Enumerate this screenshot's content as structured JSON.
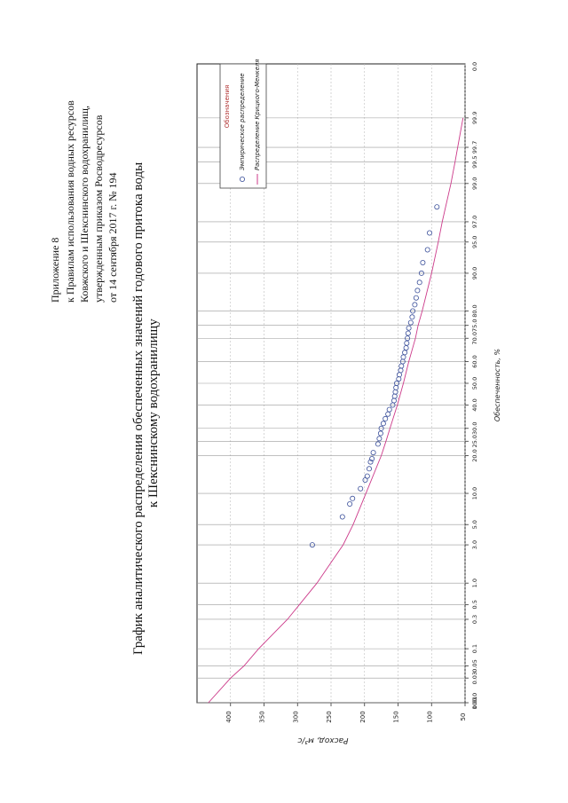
{
  "header": {
    "lines": [
      "Приложение 8",
      "к Правилам использования водных ресурсов",
      "Ковжского и Шекснинского водохранилищ,",
      "утвержденным приказом Росводресурсов",
      "от 14 сентября 2017 г. № 194"
    ]
  },
  "title": {
    "lines": [
      "График аналитического распределения обеспеченных значений годового притока воды",
      "к Шекснинскому водохранилищу"
    ]
  },
  "chart_data": {
    "type": "scatter",
    "orientation": "rotated-90-ccw",
    "x_scale": "probability",
    "xlabel": "Обеспеченность, %",
    "ylabel": "Расход, м³/с",
    "xlim": [
      0.01,
      99.99
    ],
    "ylim": [
      50,
      450
    ],
    "x_ticks": [
      0.01,
      0.03,
      0.05,
      0.1,
      0.3,
      0.5,
      1,
      3,
      5,
      10,
      20,
      25,
      30,
      40,
      50,
      60,
      70,
      75,
      80,
      90,
      95,
      97,
      99,
      99.5,
      99.7,
      99.9
    ],
    "x_tick_labels": [
      "0.01",
      "0.03",
      "0.05",
      "0.1",
      "0.3",
      "0.5",
      "1.0",
      "3.0",
      "5.0",
      "10.0",
      "20.0",
      "25.0",
      "30.0",
      "40.0",
      "50.0",
      "60.0",
      "70.0",
      "75.0",
      "80.0",
      "90.0",
      "95.0",
      "97.0",
      "99.0",
      "99.5",
      "99.7",
      "99.9"
    ],
    "x_edge_labels": [
      "100.0",
      "0.0"
    ],
    "y_ticks": [
      50,
      100,
      150,
      200,
      250,
      300,
      350,
      400
    ],
    "y_tick_labels": [
      "50",
      "100",
      "150",
      "200",
      "250",
      "300",
      "350",
      "400"
    ],
    "grid": true,
    "legend": {
      "title": "Обозначения",
      "placement": "top-right",
      "entries": [
        "Эмпирическое распределение",
        "Распределение Крицкого-Менкеля"
      ]
    },
    "series": [
      {
        "name": "Эмпирическое распределение",
        "kind": "points",
        "color": "#3a4f9a",
        "points": [
          [
            3.0,
            278
          ],
          [
            6.0,
            233
          ],
          [
            8.0,
            222
          ],
          [
            9.0,
            218
          ],
          [
            11.0,
            206
          ],
          [
            13.0,
            199
          ],
          [
            14.0,
            196
          ],
          [
            16.0,
            193
          ],
          [
            18.0,
            191
          ],
          [
            19.0,
            189
          ],
          [
            21.0,
            187
          ],
          [
            24.0,
            180
          ],
          [
            26.0,
            178
          ],
          [
            28.0,
            176
          ],
          [
            30.0,
            175
          ],
          [
            32.0,
            172
          ],
          [
            34.0,
            169
          ],
          [
            36.0,
            165
          ],
          [
            38.0,
            163
          ],
          [
            40.0,
            158
          ],
          [
            42.0,
            156
          ],
          [
            44.0,
            155
          ],
          [
            46.0,
            154
          ],
          [
            48.0,
            153
          ],
          [
            50.0,
            152
          ],
          [
            52.0,
            149
          ],
          [
            54.0,
            148
          ],
          [
            56.0,
            146
          ],
          [
            58.0,
            145
          ],
          [
            60.0,
            143
          ],
          [
            62.0,
            142
          ],
          [
            64.0,
            140
          ],
          [
            66.0,
            138
          ],
          [
            68.0,
            137
          ],
          [
            70.0,
            136
          ],
          [
            72.0,
            135
          ],
          [
            74.0,
            134
          ],
          [
            76.0,
            131
          ],
          [
            78.0,
            129
          ],
          [
            80.0,
            128
          ],
          [
            82.0,
            125
          ],
          [
            84.0,
            123
          ],
          [
            86.0,
            121
          ],
          [
            88.0,
            118
          ],
          [
            90.0,
            115
          ],
          [
            92.0,
            113
          ],
          [
            94.0,
            106
          ],
          [
            96.0,
            103
          ],
          [
            98.0,
            92
          ]
        ]
      },
      {
        "name": "Распределение Крицкого-Менкеля",
        "kind": "line",
        "color": "#cc3a8a",
        "points": [
          [
            0.01,
            433
          ],
          [
            0.03,
            400
          ],
          [
            0.05,
            380
          ],
          [
            0.1,
            358
          ],
          [
            0.3,
            315
          ],
          [
            0.5,
            297
          ],
          [
            1.0,
            271
          ],
          [
            3.0,
            232
          ],
          [
            5.0,
            217
          ],
          [
            10.0,
            198
          ],
          [
            20.0,
            175
          ],
          [
            25.0,
            168
          ],
          [
            30.0,
            162
          ],
          [
            40.0,
            151
          ],
          [
            50.0,
            142
          ],
          [
            60.0,
            134
          ],
          [
            70.0,
            124
          ],
          [
            75.0,
            120
          ],
          [
            80.0,
            114
          ],
          [
            90.0,
            100
          ],
          [
            95.0,
            90
          ],
          [
            97.0,
            84
          ],
          [
            99.0,
            71
          ],
          [
            99.5,
            65
          ],
          [
            99.7,
            61
          ],
          [
            99.9,
            53
          ]
        ]
      }
    ]
  }
}
